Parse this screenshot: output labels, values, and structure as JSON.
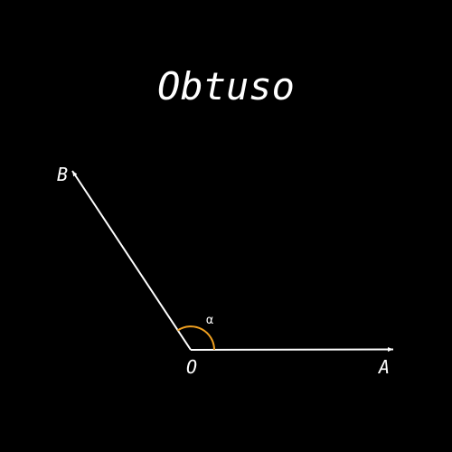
{
  "title": "Obtuso",
  "points": {
    "vertex": "O",
    "ray_a": "A",
    "ray_b": "B"
  },
  "angle_label": "α",
  "colors": {
    "background": "#000000",
    "rays": "#ffffff",
    "angle_arc": "#f0a020",
    "text": "#ffffff"
  }
}
